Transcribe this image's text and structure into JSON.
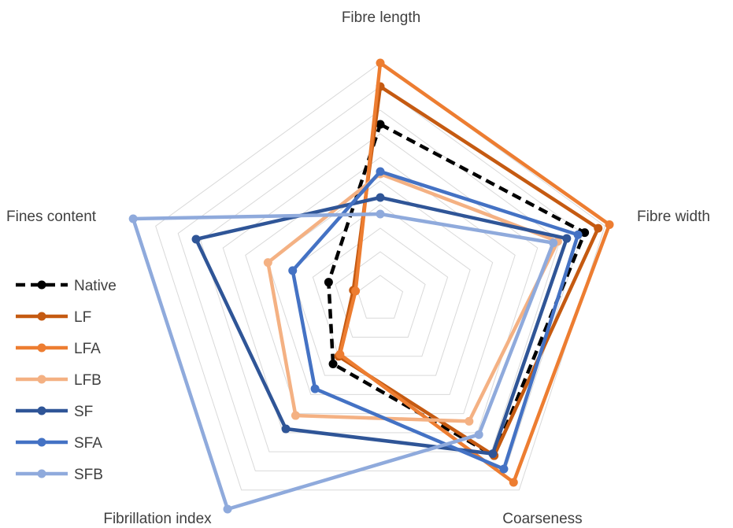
{
  "chart_data": {
    "type": "radar",
    "title": "",
    "axes": [
      "Fibre length",
      "Fibre width",
      "Coarseness",
      "Fibrillation index",
      "Fines content"
    ],
    "range": [
      0,
      10
    ],
    "grid_levels": 10,
    "grid": true,
    "legend_position": "left",
    "series": [
      {
        "name": "Native",
        "color": "#000000",
        "dashed": true,
        "values": [
          7.4,
          9.1,
          8.2,
          3.4,
          2.3
        ]
      },
      {
        "name": "LF",
        "color": "#c55a11",
        "dashed": false,
        "values": [
          9.0,
          9.7,
          8.2,
          3.0,
          1.2
        ]
      },
      {
        "name": "LFA",
        "color": "#ed7d31",
        "dashed": false,
        "values": [
          10.0,
          10.2,
          9.6,
          2.9,
          1.1
        ]
      },
      {
        "name": "LFB",
        "color": "#f4b183",
        "dashed": false,
        "values": [
          5.3,
          7.9,
          6.4,
          6.1,
          5.0
        ]
      },
      {
        "name": "SF",
        "color": "#2f5597",
        "dashed": false,
        "values": [
          4.3,
          8.3,
          8.1,
          6.8,
          8.2
        ]
      },
      {
        "name": "SFA",
        "color": "#4472c4",
        "dashed": false,
        "values": [
          5.4,
          8.8,
          8.9,
          4.7,
          3.9
        ]
      },
      {
        "name": "SFB",
        "color": "#8faadc",
        "dashed": false,
        "values": [
          3.6,
          7.7,
          7.1,
          11.0,
          11.0
        ]
      }
    ]
  }
}
